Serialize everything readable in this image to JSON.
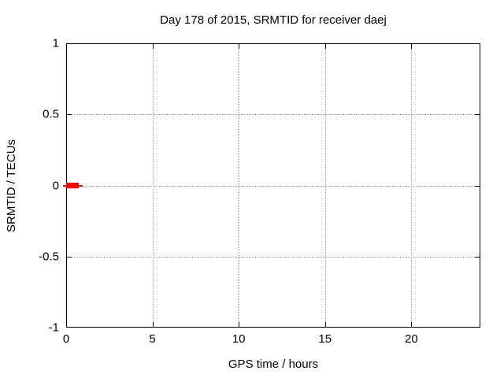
{
  "window": {
    "background": "#ffffff"
  },
  "chart_data": {
    "type": "line",
    "title": "Day 178 of 2015, SRMTID for receiver daej",
    "xlabel": "GPS time / hours",
    "ylabel": "SRMTID / TECUs",
    "xlim": [
      0,
      24
    ],
    "ylim": [
      -1,
      1
    ],
    "x_ticks": [
      0,
      5,
      10,
      15,
      20
    ],
    "x_tick_labels": [
      "0",
      "5",
      "10",
      "15",
      "20"
    ],
    "y_ticks": [
      -1,
      -0.5,
      0,
      0.5,
      1
    ],
    "y_tick_labels": [
      "-1",
      "-0.5",
      "0",
      "0.5",
      "1"
    ],
    "grid": true,
    "grid_style": "dotted",
    "legend": null,
    "series": [
      {
        "name": "SRMTID",
        "color": "#ff0000",
        "x": [
          0.0,
          0.73
        ],
        "y": [
          0.0,
          0.0
        ],
        "style": "thick horizontal segment with thin whisker at y=0",
        "whisker_x": [
          -0.2,
          0.94
        ]
      }
    ]
  },
  "colors": {
    "background": "#ffffff",
    "frame": "#000000",
    "grid": "#9e9e9e",
    "text": "#000000",
    "series": "#ff0000"
  }
}
